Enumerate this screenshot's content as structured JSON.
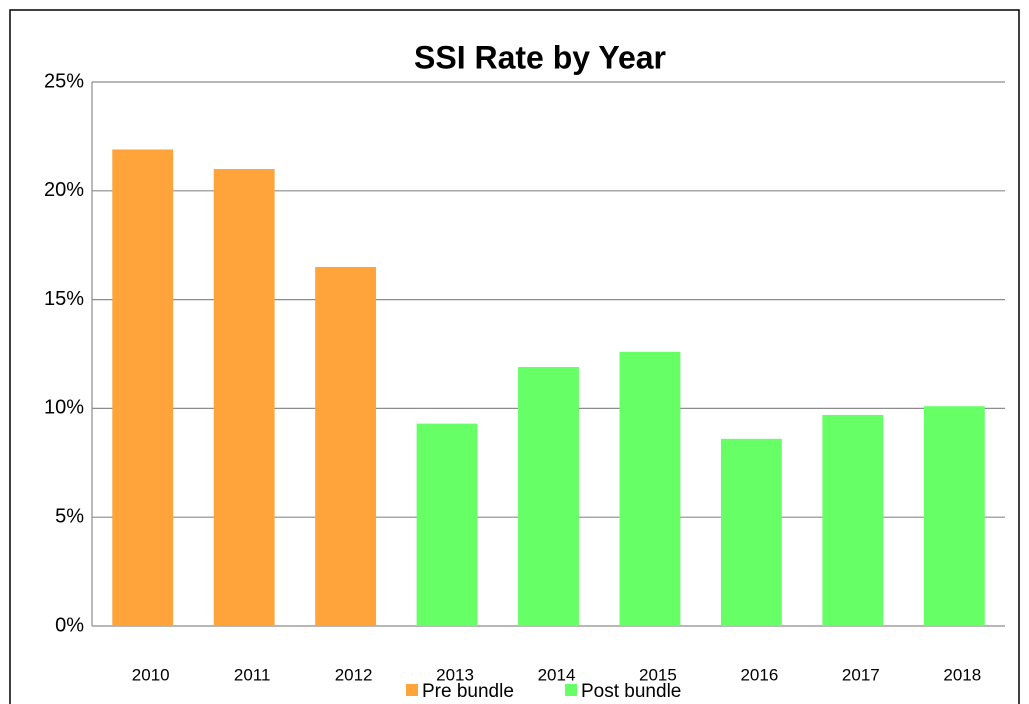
{
  "chart_data": {
    "type": "bar",
    "title": "SSI Rate by Year",
    "categories": [
      "2010",
      "2011",
      "2012",
      "2013",
      "2014",
      "2015",
      "2016",
      "2017",
      "2018"
    ],
    "series": [
      {
        "name": "Pre bundle",
        "color": "#ffa43a",
        "values": [
          21.9,
          21.0,
          16.5,
          null,
          null,
          null,
          null,
          null,
          null
        ]
      },
      {
        "name": "Post bundle",
        "color": "#66ff66",
        "values": [
          null,
          null,
          null,
          9.3,
          11.9,
          12.6,
          8.6,
          9.7,
          10.1
        ]
      }
    ],
    "ylim": [
      0,
      25
    ],
    "yticks": [
      {
        "value": 0,
        "label": "0%"
      },
      {
        "value": 5,
        "label": "5%"
      },
      {
        "value": 10,
        "label": "10%"
      },
      {
        "value": 15,
        "label": "15%"
      },
      {
        "value": 20,
        "label": "20%"
      },
      {
        "value": 25,
        "label": "25%"
      }
    ],
    "grid": true,
    "legend": "bottom"
  }
}
